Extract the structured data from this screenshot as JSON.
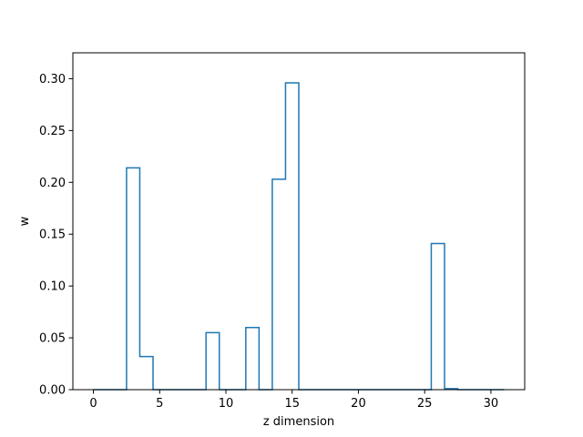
{
  "chart_data": {
    "type": "line",
    "style": "step",
    "title": "",
    "xlabel": "z dimension",
    "ylabel": "w",
    "xlim": [
      -1.55,
      32.55
    ],
    "ylim": [
      0.0,
      0.325
    ],
    "x_ticks": [
      0,
      5,
      10,
      15,
      20,
      25,
      30
    ],
    "x_tick_labels": [
      "0",
      "5",
      "10",
      "15",
      "20",
      "25",
      "30"
    ],
    "y_ticks": [
      0.0,
      0.05,
      0.1,
      0.15,
      0.2,
      0.25,
      0.3
    ],
    "y_tick_labels": [
      "0.00",
      "0.05",
      "0.10",
      "0.15",
      "0.20",
      "0.25",
      "0.30"
    ],
    "grid": false,
    "legend": "none",
    "series": [
      {
        "color": "#1f77b4",
        "x": [
          0,
          1,
          2,
          3,
          4,
          5,
          6,
          7,
          8,
          9,
          10,
          11,
          12,
          13,
          14,
          15,
          16,
          17,
          18,
          19,
          20,
          21,
          22,
          23,
          24,
          25,
          26,
          27,
          28,
          29,
          30,
          31
        ],
        "values": [
          0,
          0,
          0,
          0.214,
          0.032,
          0,
          0,
          0,
          0,
          0.055,
          0,
          0,
          0.06,
          0,
          0.203,
          0.296,
          0,
          0,
          0,
          0,
          0,
          0,
          0,
          0,
          0,
          0,
          0.141,
          0.001,
          0,
          0,
          0,
          0
        ]
      }
    ]
  }
}
